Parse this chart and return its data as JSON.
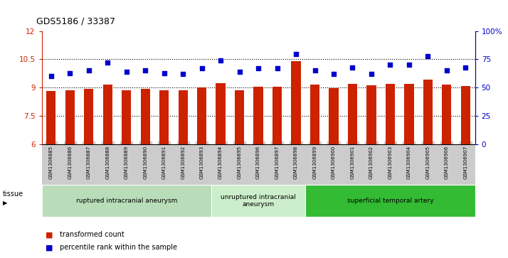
{
  "title": "GDS5186 / 33387",
  "samples": [
    "GSM1306885",
    "GSM1306886",
    "GSM1306887",
    "GSM1306888",
    "GSM1306889",
    "GSM1306890",
    "GSM1306891",
    "GSM1306892",
    "GSM1306893",
    "GSM1306894",
    "GSM1306895",
    "GSM1306896",
    "GSM1306897",
    "GSM1306898",
    "GSM1306899",
    "GSM1306900",
    "GSM1306901",
    "GSM1306902",
    "GSM1306903",
    "GSM1306904",
    "GSM1306905",
    "GSM1306906",
    "GSM1306907"
  ],
  "transformed_count": [
    8.82,
    8.85,
    8.93,
    9.15,
    8.88,
    8.93,
    8.87,
    8.85,
    9.02,
    9.25,
    8.88,
    9.04,
    9.04,
    10.4,
    9.16,
    8.97,
    9.2,
    9.12,
    9.2,
    9.2,
    9.42,
    9.15,
    9.1
  ],
  "percentile_rank": [
    60,
    63,
    65,
    72,
    64,
    65,
    63,
    62,
    67,
    74,
    64,
    67,
    67,
    80,
    65,
    62,
    68,
    62,
    70,
    70,
    78,
    65,
    68
  ],
  "ylim_left": [
    6,
    12
  ],
  "ylim_right": [
    0,
    100
  ],
  "yticks_left": [
    6,
    7.5,
    9,
    10.5,
    12
  ],
  "yticks_right": [
    0,
    25,
    50,
    75,
    100
  ],
  "bar_color": "#cc2200",
  "dot_color": "#0000cc",
  "bg_color": "#ffffff",
  "xtick_bg_color": "#cccccc",
  "groups": [
    {
      "label": "ruptured intracranial aneurysm",
      "start": 0,
      "end": 8,
      "color": "#b8ddb8"
    },
    {
      "label": "unruptured intracranial\naneurysm",
      "start": 9,
      "end": 13,
      "color": "#cceecc"
    },
    {
      "label": "superficial temporal artery",
      "start": 14,
      "end": 22,
      "color": "#33bb33"
    }
  ],
  "tissue_label": "tissue",
  "legend_items": [
    {
      "color": "#cc2200",
      "label": "transformed count"
    },
    {
      "color": "#0000cc",
      "label": "percentile rank within the sample"
    }
  ],
  "dotted_lines": [
    7.5,
    9.0,
    10.5
  ]
}
